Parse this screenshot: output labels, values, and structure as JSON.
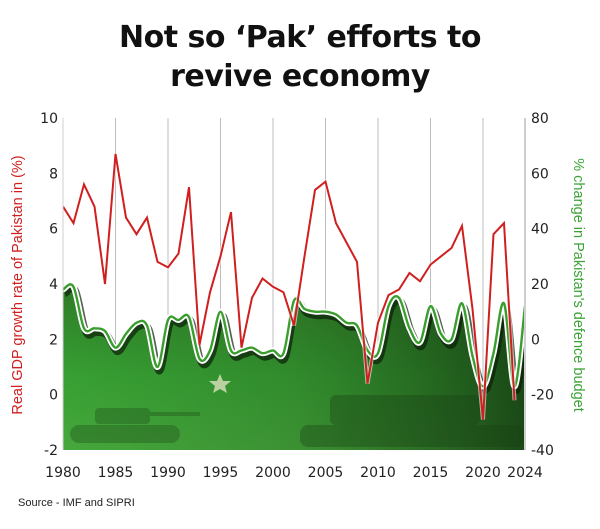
{
  "title_lines": [
    "Not so ‘Pak’ efforts to",
    "revive economy"
  ],
  "source": "Source - IMF and SIPRI",
  "colors": {
    "gdp_line": "#d01f1f",
    "defence_line": "#3a9e2f",
    "left_axis_label": "#d01f1f",
    "right_axis_label": "#3aa335",
    "area_top": "#2c6b22",
    "area_bottom": "#39a33a",
    "gridline": "#bdbdbd"
  },
  "chart_data": {
    "type": "line",
    "title": "Not so ‘Pak’ efforts to revive economy",
    "xlabel": "",
    "ylabel": "Real GDP growth rate of Pakistan in (%)",
    "y2label": "% change in Pakistan's defence budget",
    "ylim": [
      -2,
      10
    ],
    "y2lim": [
      -40,
      80
    ],
    "xlim": [
      1980,
      2024
    ],
    "x_ticks": [
      "1980",
      "1985",
      "1990",
      "1995",
      "2000",
      "2005",
      "2010",
      "2015",
      "2020",
      "2024"
    ],
    "y_ticks": [
      "10",
      "8",
      "6",
      "4",
      "2",
      "0",
      "-2"
    ],
    "y2_ticks": [
      "80",
      "60",
      "40",
      "20",
      "0",
      "-20",
      "-40"
    ],
    "grid": "vertical gridlines at 5-year intervals",
    "legend": "none (axis labels colored by series)",
    "series": [
      {
        "name": "Real GDP growth rate of Pakistan (%)",
        "axis": "left",
        "color": "#d01f1f",
        "x": [
          1980,
          1981,
          1982,
          1983,
          1984,
          1985,
          1986,
          1987,
          1988,
          1989,
          1990,
          1991,
          1992,
          1993,
          1994,
          1995,
          1996,
          1997,
          1998,
          1999,
          2000,
          2001,
          2002,
          2003,
          2004,
          2005,
          2006,
          2007,
          2008,
          2009,
          2010,
          2011,
          2012,
          2013,
          2014,
          2015,
          2016,
          2017,
          2018,
          2019,
          2020,
          2021,
          2022,
          2023
        ],
        "values": [
          6.8,
          6.2,
          7.6,
          6.8,
          4.0,
          8.7,
          6.4,
          5.8,
          6.4,
          4.8,
          4.6,
          5.1,
          7.5,
          1.8,
          3.7,
          5.0,
          6.6,
          1.7,
          3.5,
          4.2,
          3.9,
          3.7,
          2.5,
          5.0,
          7.4,
          7.7,
          6.2,
          5.5,
          4.8,
          0.4,
          2.6,
          3.6,
          3.8,
          4.4,
          4.1,
          4.7,
          5.0,
          5.3,
          6.1,
          3.1,
          -0.9,
          5.8,
          6.2,
          -0.2
        ]
      },
      {
        "name": "% change in Pakistan's defence budget",
        "axis": "right",
        "color": "#3a9e2f",
        "x": [
          1980,
          1981,
          1982,
          1983,
          1984,
          1985,
          1986,
          1987,
          1988,
          1989,
          1990,
          1991,
          1992,
          1993,
          1994,
          1995,
          1996,
          1997,
          1998,
          1999,
          2000,
          2001,
          2002,
          2003,
          2004,
          2005,
          2006,
          2007,
          2008,
          2009,
          2010,
          2011,
          2012,
          2013,
          2014,
          2015,
          2016,
          2017,
          2018,
          2019,
          2020,
          2021,
          2022,
          2023,
          2024
        ],
        "values": [
          18,
          19,
          4,
          4,
          3,
          -3,
          2,
          6,
          5,
          -10,
          7,
          7,
          8,
          -7,
          -4,
          10,
          -4,
          -4,
          -3,
          -5,
          -4,
          -5,
          14,
          11,
          10,
          10,
          9,
          6,
          5,
          -4,
          -5,
          12,
          15,
          4,
          -1,
          12,
          2,
          0,
          13,
          -6,
          -17,
          -5,
          13,
          -17,
          12
        ]
      }
    ]
  }
}
